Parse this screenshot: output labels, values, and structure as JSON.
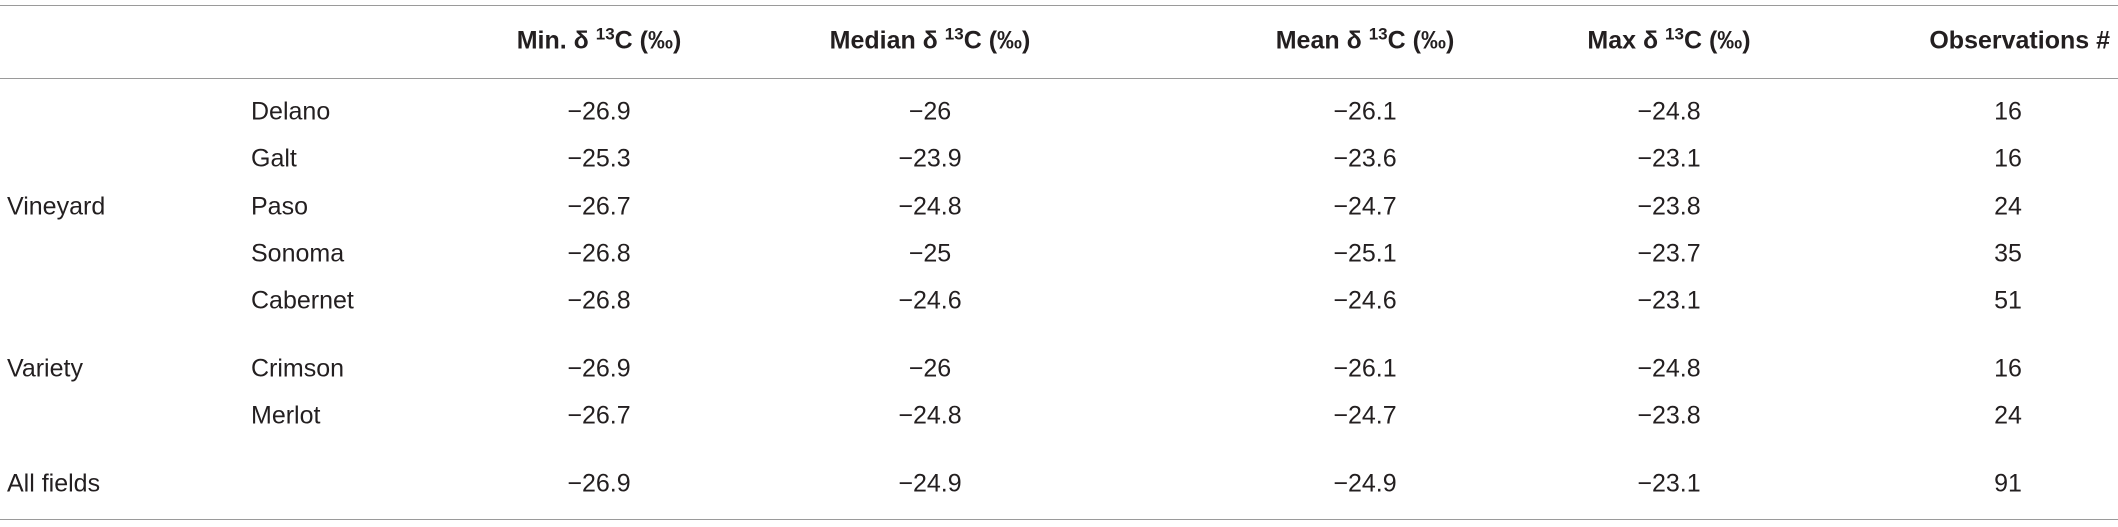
{
  "table": {
    "header": [
      [
        "Min. δ ",
        "13",
        "C (‰)"
      ],
      [
        "Median δ ",
        "13",
        "C (‰)"
      ],
      [
        "Mean δ ",
        "13",
        "C (‰)"
      ],
      [
        "Max δ ",
        "13",
        "C (‰)"
      ],
      [
        "Observations #"
      ]
    ],
    "groups": [
      {
        "label": "Vineyard",
        "rows": [
          {
            "name": "Delano",
            "values": [
              "−26.9",
              "−26",
              "−26.1",
              "−24.8",
              "16"
            ]
          },
          {
            "name": "Galt",
            "values": [
              "−25.3",
              "−23.9",
              "−23.6",
              "−23.1",
              "16"
            ]
          },
          {
            "name": "Paso",
            "values": [
              "−26.7",
              "−24.8",
              "−24.7",
              "−23.8",
              "24"
            ]
          },
          {
            "name": "Sonoma",
            "values": [
              "−26.8",
              "−25",
              "−25.1",
              "−23.7",
              "35"
            ]
          },
          {
            "name": "Cabernet",
            "values": [
              "−26.8",
              "−24.6",
              "−24.6",
              "−23.1",
              "51"
            ]
          }
        ]
      },
      {
        "label": "Variety",
        "rows": [
          {
            "name": "Crimson",
            "values": [
              "−26.9",
              "−26",
              "−26.1",
              "−24.8",
              "16"
            ]
          },
          {
            "name": "Merlot",
            "values": [
              "−26.7",
              "−24.8",
              "−24.7",
              "−23.8",
              "24"
            ]
          }
        ]
      },
      {
        "label": "All fields",
        "rows": [
          {
            "values": [
              "−26.9",
              "−24.9",
              "−24.9",
              "−23.1",
              "91"
            ]
          }
        ]
      }
    ]
  }
}
